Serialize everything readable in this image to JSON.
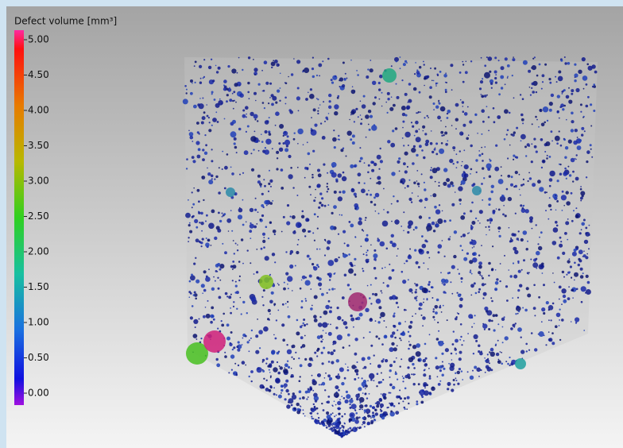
{
  "legend": {
    "title": "Defect volume [mm³]",
    "range": [
      0,
      5
    ],
    "ticks": [
      {
        "value": 5,
        "label": "5.00"
      },
      {
        "value": 4.5,
        "label": "4.50"
      },
      {
        "value": 4,
        "label": "4.00"
      },
      {
        "value": 3.5,
        "label": "3.50"
      },
      {
        "value": 3,
        "label": "3.00"
      },
      {
        "value": 2.5,
        "label": "2.50"
      },
      {
        "value": 2,
        "label": "2.00"
      },
      {
        "value": 1.5,
        "label": "1.50"
      },
      {
        "value": 1,
        "label": "1.00"
      },
      {
        "value": 0.5,
        "label": "0.50"
      },
      {
        "value": 0,
        "label": "0.00"
      }
    ]
  }
}
